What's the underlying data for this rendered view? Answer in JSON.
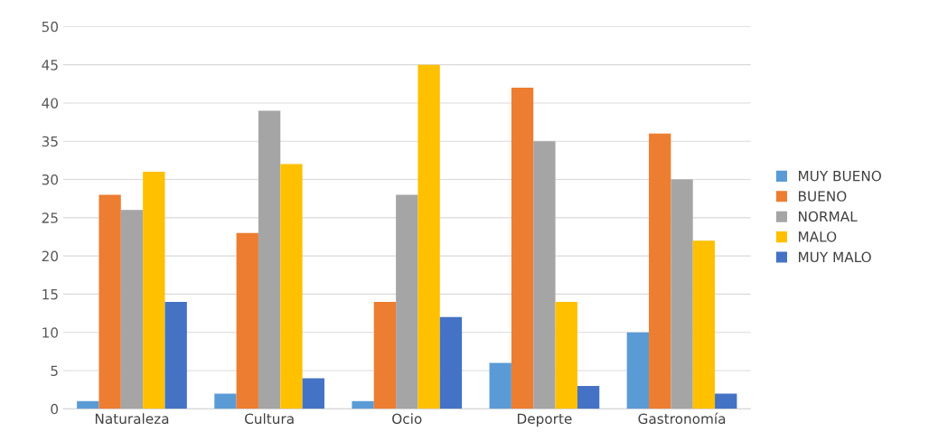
{
  "chart_data": {
    "type": "bar",
    "categories": [
      "Naturaleza",
      "Cultura",
      "Ocio",
      "Deporte",
      "Gastronomía"
    ],
    "series": [
      {
        "name": "MUY BUENO",
        "color": "#5b9bd5",
        "values": [
          1,
          2,
          1,
          6,
          10
        ]
      },
      {
        "name": "BUENO",
        "color": "#ed7d31",
        "values": [
          28,
          23,
          14,
          42,
          36
        ]
      },
      {
        "name": "NORMAL",
        "color": "#a5a5a5",
        "values": [
          26,
          39,
          28,
          35,
          30
        ]
      },
      {
        "name": "MALO",
        "color": "#ffc000",
        "values": [
          31,
          32,
          45,
          14,
          22
        ]
      },
      {
        "name": "MUY MALO",
        "color": "#4472c4",
        "values": [
          14,
          4,
          12,
          3,
          2
        ]
      }
    ],
    "ylim": [
      0,
      50
    ],
    "yticks": [
      0,
      5,
      10,
      15,
      20,
      25,
      30,
      35,
      40,
      45,
      50
    ],
    "grid": "y",
    "legend": "right"
  }
}
